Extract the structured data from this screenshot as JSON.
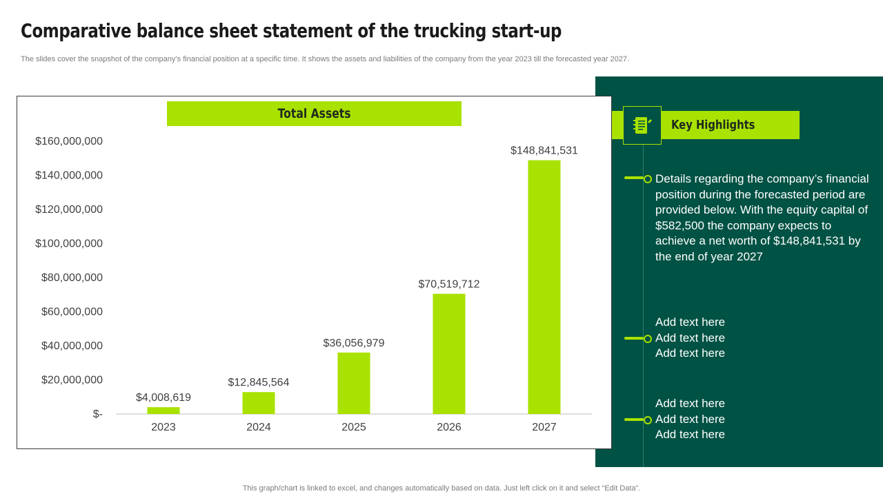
{
  "page": {
    "title": "Comparative balance sheet statement of the trucking start-up",
    "subtitle": "The slides cover the snapshot of the company’s financial position at a specific time. It shows the assets and liabilities of the company from the year 2023 till the forecasted year 2027.",
    "footer": "This graph/chart is linked to excel,  and changes automatically based on data. Just left click on it and select “Edit Data”."
  },
  "colors": {
    "accent": "#a9e200",
    "panel": "#005244",
    "text_dark": "#1a1a1a",
    "muted": "#7a7a7a"
  },
  "chart_data": {
    "type": "bar",
    "title": "Total Assets",
    "categories": [
      "2023",
      "2024",
      "2025",
      "2026",
      "2027"
    ],
    "values": [
      4008619,
      12845564,
      36056979,
      70519712,
      148841531
    ],
    "data_labels": [
      "$4,008,619",
      "$12,845,564",
      "$36,056,979",
      "$70,519,712",
      "$148,841,531"
    ],
    "ylim": [
      0,
      160000000
    ],
    "yticks": [
      0,
      20000000,
      40000000,
      60000000,
      80000000,
      100000000,
      120000000,
      140000000,
      160000000
    ],
    "ytick_labels": [
      "$-",
      "$20,000,000",
      "$40,000,000",
      "$60,000,000",
      "$80,000,000",
      "$100,000,000",
      "$120,000,000",
      "$140,000,000",
      "$160,000,000"
    ],
    "xlabel": "",
    "ylabel": "",
    "grid": false,
    "bar_color": "#a9e200"
  },
  "highlights": {
    "heading": "Key Highlights",
    "icon": "notepad-icon",
    "items": [
      {
        "text": "Details regarding the company’s financial position during the forecasted period are provided below. With the equity capital of $582,500 the company expects to achieve a net worth of $148,841,531 by the end of year 2027"
      },
      {
        "lines": [
          "Add text here",
          "Add text here",
          "Add text here"
        ]
      },
      {
        "lines": [
          "Add text here",
          "Add text here",
          "Add text here"
        ]
      }
    ]
  }
}
